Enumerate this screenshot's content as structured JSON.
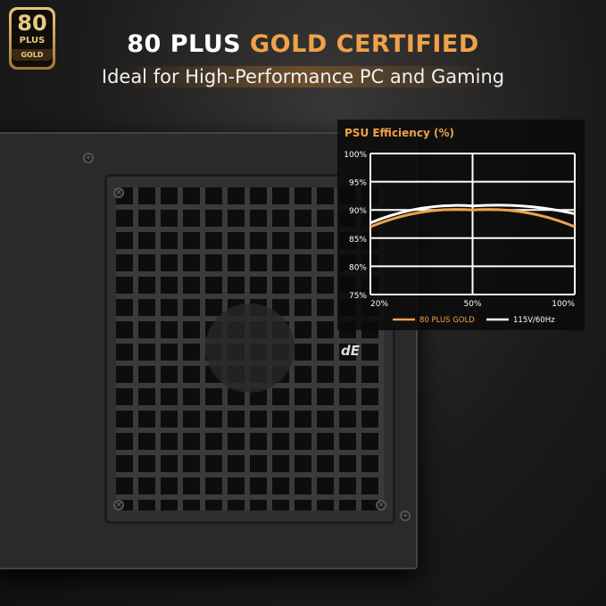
{
  "badge": {
    "number": "80",
    "plus": "PLUS",
    "level": "GOLD"
  },
  "header": {
    "title_white": "80 PLUS",
    "title_gold": "GOLD CERTIFIED",
    "subtitle": "Ideal for High-Performance PC and Gaming"
  },
  "product": {
    "logo": "dE"
  },
  "colors": {
    "gold": "#f0a24a",
    "white": "#ffffff"
  },
  "chart_data": {
    "type": "line",
    "title": "PSU Efficiency (%)",
    "x": [
      "20%",
      "50%",
      "100%"
    ],
    "yticks": [
      "75%",
      "80%",
      "85%",
      "90%",
      "95%",
      "100%"
    ],
    "ylim": [
      75,
      100
    ],
    "grid": true,
    "legend_position": "bottom",
    "series": [
      {
        "name": "80 PLUS GOLD",
        "color": "#f0a24a",
        "values": [
          87,
          90,
          87
        ]
      },
      {
        "name": "115V/60Hz",
        "color": "#ffffff",
        "values": [
          87.7,
          90.7,
          89.3
        ]
      }
    ]
  }
}
